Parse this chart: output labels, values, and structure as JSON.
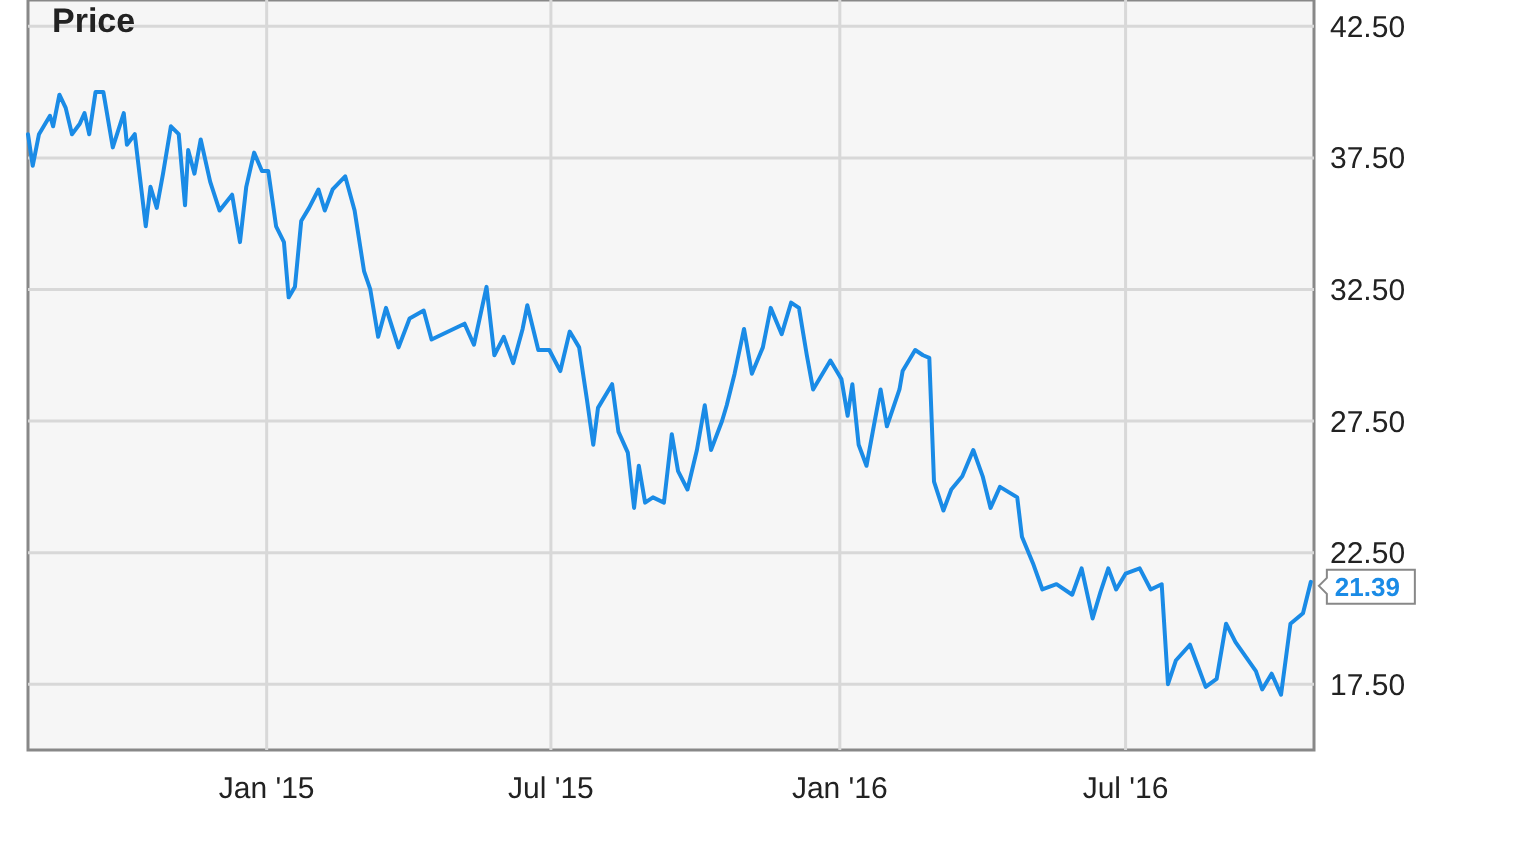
{
  "chart_data": {
    "type": "line",
    "title": "Price",
    "x": [
      "2014-08-02",
      "2014-08-05",
      "2014-08-09",
      "2014-08-16",
      "2014-08-18",
      "2014-08-22",
      "2014-08-26",
      "2014-08-30",
      "2014-09-04",
      "2014-09-07",
      "2014-09-10",
      "2014-09-14",
      "2014-09-19",
      "2014-09-25",
      "2014-10-02",
      "2014-10-04",
      "2014-10-09",
      "2014-10-16",
      "2014-10-19",
      "2014-10-23",
      "2014-10-27",
      "2014-11-01",
      "2014-11-06",
      "2014-11-10",
      "2014-11-12",
      "2014-11-16",
      "2014-11-20",
      "2014-11-26",
      "2014-12-02",
      "2014-12-10",
      "2014-12-15",
      "2014-12-19",
      "2014-12-24",
      "2014-12-29",
      "2015-01-02",
      "2015-01-07",
      "2015-01-12",
      "2015-01-15",
      "2015-01-19",
      "2015-01-23",
      "2015-01-28",
      "2015-02-03",
      "2015-02-07",
      "2015-02-12",
      "2015-02-20",
      "2015-02-26",
      "2015-03-04",
      "2015-03-08",
      "2015-03-13",
      "2015-03-18",
      "2015-03-26",
      "2015-04-02",
      "2015-04-11",
      "2015-04-16",
      "2015-05-07",
      "2015-05-13",
      "2015-05-21",
      "2015-05-26",
      "2015-06-01",
      "2015-06-07",
      "2015-06-13",
      "2015-06-16",
      "2015-06-23",
      "2015-06-30",
      "2015-07-07",
      "2015-07-13",
      "2015-07-19",
      "2015-07-24",
      "2015-07-28",
      "2015-07-31",
      "2015-08-09",
      "2015-08-13",
      "2015-08-19",
      "2015-08-23",
      "2015-08-26",
      "2015-08-30",
      "2015-09-04",
      "2015-09-11",
      "2015-09-16",
      "2015-09-20",
      "2015-09-26",
      "2015-10-02",
      "2015-10-07",
      "2015-10-11",
      "2015-10-18",
      "2015-10-21",
      "2015-10-26",
      "2015-11-01",
      "2015-11-06",
      "2015-11-13",
      "2015-11-18",
      "2015-11-25",
      "2015-11-27",
      "2015-12-01",
      "2015-12-06",
      "2015-12-11",
      "2015-12-15",
      "2015-12-26",
      "2016-01-02",
      "2016-01-06",
      "2016-01-09",
      "2016-01-13",
      "2016-01-18",
      "2016-01-22",
      "2016-01-27",
      "2016-01-31",
      "2016-02-08",
      "2016-02-10",
      "2016-02-18",
      "2016-02-23",
      "2016-02-27",
      "2016-03-01",
      "2016-03-07",
      "2016-03-12",
      "2016-03-19",
      "2016-03-26",
      "2016-04-01",
      "2016-04-06",
      "2016-04-12",
      "2016-04-23",
      "2016-04-26",
      "2016-05-03",
      "2016-05-09",
      "2016-05-18",
      "2016-05-28",
      "2016-06-03",
      "2016-06-10",
      "2016-06-15",
      "2016-06-20",
      "2016-06-25",
      "2016-07-01",
      "2016-07-10",
      "2016-07-17",
      "2016-07-24",
      "2016-07-28",
      "2016-08-02",
      "2016-08-11",
      "2016-08-21",
      "2016-08-28",
      "2016-09-03",
      "2016-09-09",
      "2016-09-22",
      "2016-09-26",
      "2016-10-02",
      "2016-10-08",
      "2016-10-14",
      "2016-10-22",
      "2016-10-27"
    ],
    "series": [
      {
        "color": "#1a8be6",
        "values": [
          38.4,
          37.2,
          38.4,
          39.1,
          38.7,
          39.9,
          39.4,
          38.4,
          38.8,
          39.2,
          38.4,
          40.0,
          40.0,
          37.9,
          39.2,
          38.0,
          38.4,
          34.9,
          36.4,
          35.6,
          36.9,
          38.7,
          38.4,
          35.7,
          37.8,
          36.9,
          38.2,
          36.6,
          35.5,
          36.1,
          34.3,
          36.4,
          37.7,
          37.0,
          37.0,
          34.9,
          34.3,
          32.2,
          32.6,
          35.1,
          35.6,
          36.3,
          35.5,
          36.3,
          36.8,
          35.5,
          33.2,
          32.5,
          30.7,
          31.8,
          30.3,
          31.4,
          31.7,
          30.6,
          31.2,
          30.4,
          32.6,
          30.0,
          30.7,
          29.7,
          31.0,
          31.9,
          30.2,
          30.2,
          29.4,
          30.9,
          30.3,
          28.3,
          26.6,
          28.0,
          28.9,
          27.1,
          26.3,
          24.2,
          25.8,
          24.4,
          24.6,
          24.4,
          27.0,
          25.6,
          24.9,
          26.4,
          28.1,
          26.4,
          27.5,
          28.1,
          29.3,
          31.0,
          29.3,
          30.3,
          31.8,
          30.8,
          31.2,
          32.0,
          31.8,
          30.0,
          28.7,
          29.8,
          29.1,
          27.7,
          28.9,
          26.6,
          25.8,
          27.1,
          28.7,
          27.3,
          28.7,
          29.4,
          30.2,
          30.0,
          29.9,
          25.2,
          24.1,
          24.9,
          25.4,
          26.4,
          25.4,
          24.2,
          25.0,
          24.6,
          23.1,
          22.1,
          21.1,
          21.3,
          20.9,
          21.9,
          20.0,
          21.0,
          21.9,
          21.1,
          21.7,
          21.9,
          21.1,
          21.3,
          17.5,
          18.4,
          19.0,
          17.4,
          17.7,
          19.8,
          19.1,
          18.0,
          17.3,
          17.9,
          17.1,
          19.8,
          20.2,
          21.39
        ]
      }
    ],
    "xlim": [
      "2014-08-02",
      "2016-10-29"
    ],
    "xticks": [
      {
        "value": "2015-01-01",
        "label": "Jan '15"
      },
      {
        "value": "2015-07-01",
        "label": "Jul '15"
      },
      {
        "value": "2016-01-01",
        "label": "Jan '16"
      },
      {
        "value": "2016-07-01",
        "label": "Jul '16"
      }
    ],
    "ylim": [
      15,
      43.5
    ],
    "yticks": [
      {
        "value": 17.5,
        "label": "17.50"
      },
      {
        "value": 22.5,
        "label": "22.50"
      },
      {
        "value": 27.5,
        "label": "27.50"
      },
      {
        "value": 32.5,
        "label": "32.50"
      },
      {
        "value": 37.5,
        "label": "37.50"
      },
      {
        "value": 42.5,
        "label": "42.50"
      }
    ],
    "grid": true,
    "line_style": "solid",
    "annotations": [
      {
        "text": "21.39",
        "x": "2016-10-27",
        "y": 21.39
      }
    ]
  }
}
